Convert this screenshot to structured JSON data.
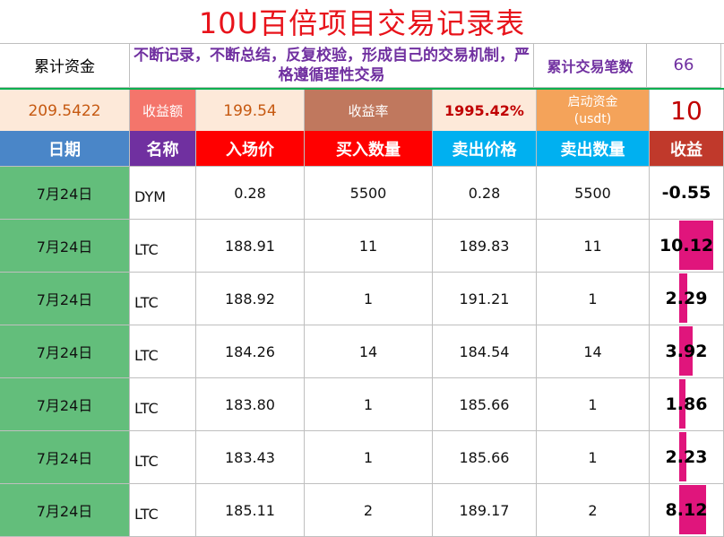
{
  "title": "10U百倍项目交易记录表",
  "summary": {
    "cum_capital_label": "累计资金",
    "motto": "不断记录，不断总结，反复校验，形成自己的交易机制，严格遵循理性交易",
    "trade_count_label": "累计交易笔数",
    "trade_count": "66",
    "cum_capital_value": "209.5422",
    "profit_amount_label": "收益额",
    "profit_amount": "199.54",
    "profit_rate_label": "收益率",
    "profit_rate": "1995.42%",
    "start_capital_label_1": "启动资金",
    "start_capital_label_2": "(usdt)",
    "start_capital": "10"
  },
  "columns": {
    "date": "日期",
    "name": "名称",
    "entry_price": "入场价",
    "buy_qty": "买入数量",
    "sell_price": "卖出价格",
    "sell_qty": "卖出数量",
    "profit": "收益"
  },
  "colors": {
    "header_date": "#4a86c8",
    "header_name": "#7030a0",
    "header_red": "#ff0000",
    "header_blue": "#00b0f0",
    "header_profit": "#c0392b",
    "date_cell": "#63be7b",
    "data_bar": "#e0157c"
  },
  "rows": [
    {
      "date": "7月24日",
      "name": "DYM",
      "entry": "0.28",
      "buy_qty": "5500",
      "sell": "0.28",
      "sell_qty": "5500",
      "profit": "-0.55",
      "bar": 0
    },
    {
      "date": "7月24日",
      "name": "LTC",
      "entry": "188.91",
      "buy_qty": "11",
      "sell": "189.83",
      "sell_qty": "11",
      "profit": "10.12",
      "bar": 10.12
    },
    {
      "date": "7月24日",
      "name": "LTC",
      "entry": "188.92",
      "buy_qty": "1",
      "sell": "191.21",
      "sell_qty": "1",
      "profit": "2.29",
      "bar": 2.29
    },
    {
      "date": "7月24日",
      "name": "LTC",
      "entry": "184.26",
      "buy_qty": "14",
      "sell": "184.54",
      "sell_qty": "14",
      "profit": "3.92",
      "bar": 3.92
    },
    {
      "date": "7月24日",
      "name": "LTC",
      "entry": "183.80",
      "buy_qty": "1",
      "sell": "185.66",
      "sell_qty": "1",
      "profit": "1.86",
      "bar": 1.86
    },
    {
      "date": "7月24日",
      "name": "LTC",
      "entry": "183.43",
      "buy_qty": "1",
      "sell": "185.66",
      "sell_qty": "1",
      "profit": "2.23",
      "bar": 2.23
    },
    {
      "date": "7月24日",
      "name": "LTC",
      "entry": "185.11",
      "buy_qty": "2",
      "sell": "189.17",
      "sell_qty": "2",
      "profit": "8.12",
      "bar": 8.12
    }
  ]
}
